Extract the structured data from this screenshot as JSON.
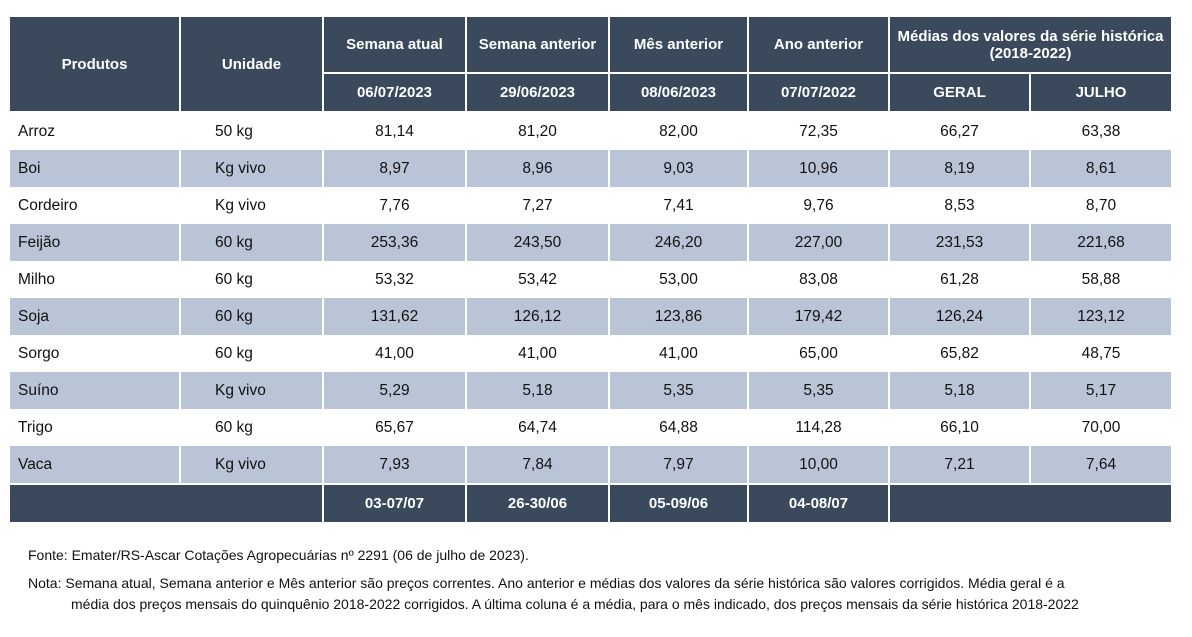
{
  "headers": {
    "produtos": "Produtos",
    "unidade": "Unidade",
    "semana_atual": "Semana atual",
    "semana_anterior": "Semana anterior",
    "mes_anterior": "Mês anterior",
    "ano_anterior": "Ano anterior",
    "medias": "Médias dos valores da série histórica (2018-2022)",
    "date_semana_atual": "06/07/2023",
    "date_semana_anterior": "29/06/2023",
    "date_mes_anterior": "08/06/2023",
    "date_ano_anterior": "07/07/2022",
    "geral": "GERAL",
    "julho": "JULHO"
  },
  "rows": [
    {
      "produto": "Arroz",
      "unidade": "50 kg",
      "semana_atual": "81,14",
      "semana_anterior": "81,20",
      "mes_anterior": "82,00",
      "ano_anterior": "72,35",
      "geral": "66,27",
      "julho": "63,38"
    },
    {
      "produto": "Boi",
      "unidade": "Kg vivo",
      "semana_atual": "8,97",
      "semana_anterior": "8,96",
      "mes_anterior": "9,03",
      "ano_anterior": "10,96",
      "geral": "8,19",
      "julho": "8,61"
    },
    {
      "produto": "Cordeiro",
      "unidade": "Kg vivo",
      "semana_atual": "7,76",
      "semana_anterior": "7,27",
      "mes_anterior": "7,41",
      "ano_anterior": "9,76",
      "geral": "8,53",
      "julho": "8,70"
    },
    {
      "produto": "Feijão",
      "unidade": "60 kg",
      "semana_atual": "253,36",
      "semana_anterior": "243,50",
      "mes_anterior": "246,20",
      "ano_anterior": "227,00",
      "geral": "231,53",
      "julho": "221,68"
    },
    {
      "produto": "Milho",
      "unidade": "60 kg",
      "semana_atual": "53,32",
      "semana_anterior": "53,42",
      "mes_anterior": "53,00",
      "ano_anterior": "83,08",
      "geral": "61,28",
      "julho": "58,88"
    },
    {
      "produto": "Soja",
      "unidade": "60 kg",
      "semana_atual": "131,62",
      "semana_anterior": "126,12",
      "mes_anterior": "123,86",
      "ano_anterior": "179,42",
      "geral": "126,24",
      "julho": "123,12"
    },
    {
      "produto": "Sorgo",
      "unidade": "60 kg",
      "semana_atual": "41,00",
      "semana_anterior": "41,00",
      "mes_anterior": "41,00",
      "ano_anterior": "65,00",
      "geral": "65,82",
      "julho": "48,75"
    },
    {
      "produto": "Suíno",
      "unidade": "Kg vivo",
      "semana_atual": "5,29",
      "semana_anterior": "5,18",
      "mes_anterior": "5,35",
      "ano_anterior": "5,35",
      "geral": "5,18",
      "julho": "5,17"
    },
    {
      "produto": "Trigo",
      "unidade": "60 kg",
      "semana_atual": "65,67",
      "semana_anterior": "64,74",
      "mes_anterior": "64,88",
      "ano_anterior": "114,28",
      "geral": "66,10",
      "julho": "70,00"
    },
    {
      "produto": "Vaca",
      "unidade": "Kg vivo",
      "semana_atual": "7,93",
      "semana_anterior": "7,84",
      "mes_anterior": "7,97",
      "ano_anterior": "10,00",
      "geral": "7,21",
      "julho": "7,64"
    }
  ],
  "footer": {
    "semana_atual": "03-07/07",
    "semana_anterior": "26-30/06",
    "mes_anterior": "05-09/06",
    "ano_anterior": "04-08/07"
  },
  "notes": {
    "fonte": "Fonte: Emater/RS-Ascar Cotações Agropecuárias nº 2291 (06 de julho de 2023).",
    "nota_line1": "Nota: Semana atual, Semana anterior e Mês anterior são preços correntes. Ano anterior e médias dos valores da série histórica são valores corrigidos. Média geral é a",
    "nota_line2": "média dos preços mensais do quinquênio 2018-2022 corrigidos. A última coluna é a média, para o mês indicado, dos preços mensais da série histórica 2018-2022"
  }
}
